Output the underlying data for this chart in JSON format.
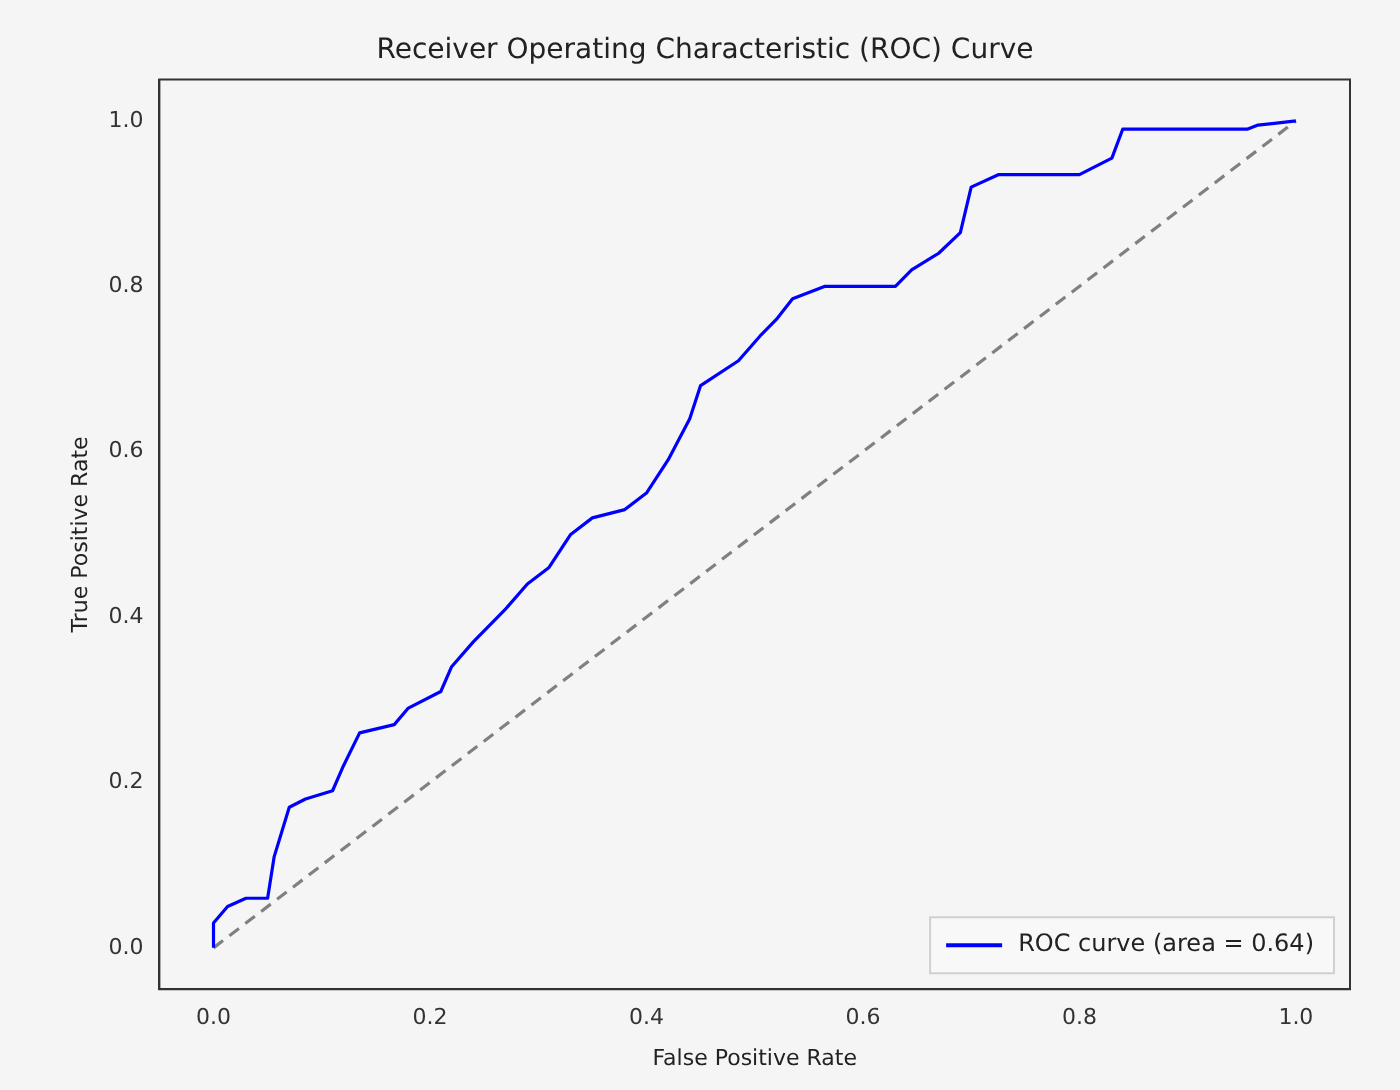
{
  "chart_data": {
    "type": "line",
    "title": "Receiver Operating Characteristic (ROC) Curve",
    "xlabel": "False Positive Rate",
    "ylabel": "True Positive Rate",
    "xlim": [
      -0.05,
      1.05
    ],
    "ylim": [
      -0.05,
      1.05
    ],
    "xticks": [
      {
        "value": 0,
        "label": "0.0"
      },
      0.2,
      0.4,
      0.6,
      0.8,
      {
        "value": 1,
        "label": "1.0"
      }
    ],
    "yticks": [
      {
        "value": 0,
        "label": "0.0"
      },
      0.2,
      0.4,
      0.6,
      0.8,
      {
        "value": 1,
        "label": "1.0"
      }
    ],
    "grid": false,
    "legend": "bottom right",
    "marker": "none",
    "series": [
      {
        "name": "ROC curve (area = 0.64)",
        "color": "#0000ff",
        "line_style": "solid",
        "x": [
          0,
          0,
          0.013,
          0.03,
          0.05,
          0.056,
          0.07,
          0.085,
          0.11,
          0.12,
          0.135,
          0.167,
          0.18,
          0.21,
          0.22,
          0.24,
          0.27,
          0.29,
          0.31,
          0.33,
          0.35,
          0.38,
          0.4,
          0.42,
          0.44,
          0.45,
          0.485,
          0.505,
          0.52,
          0.535,
          0.565,
          0.63,
          0.645,
          0.67,
          0.69,
          0.7,
          0.725,
          0.8,
          0.83,
          0.84,
          0.955,
          0.965,
          1
        ],
        "values": [
          0,
          0.03,
          0.05,
          0.06,
          0.06,
          0.11,
          0.17,
          0.18,
          0.19,
          0.22,
          0.26,
          0.27,
          0.29,
          0.31,
          0.34,
          0.37,
          0.41,
          0.44,
          0.46,
          0.5,
          0.52,
          0.53,
          0.55,
          0.59,
          0.64,
          0.68,
          0.71,
          0.74,
          0.76,
          0.785,
          0.8,
          0.8,
          0.82,
          0.84,
          0.865,
          0.92,
          0.935,
          0.935,
          0.955,
          0.99,
          0.99,
          0.995,
          1
        ]
      },
      {
        "color": "#808080",
        "line_style": "dashed",
        "x": [
          0,
          1
        ],
        "values": [
          0,
          1
        ]
      }
    ]
  }
}
